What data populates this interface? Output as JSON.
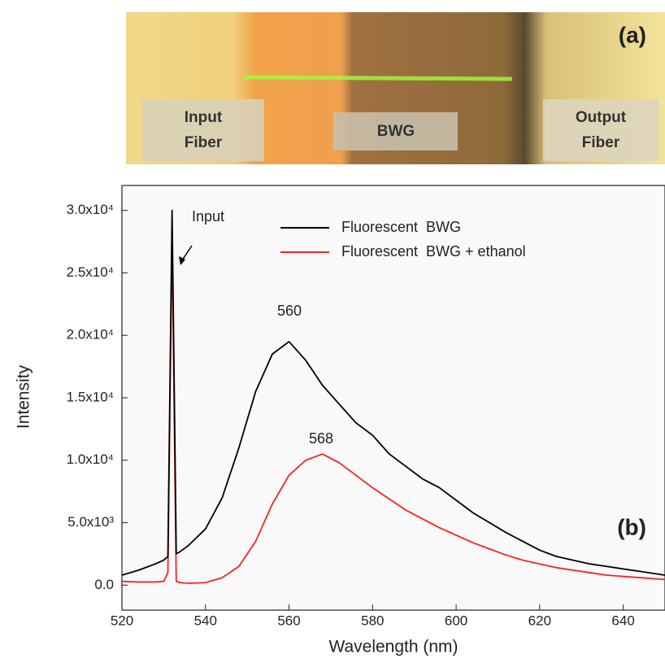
{
  "photo": {
    "tag": "(a)",
    "labels": [
      [
        "Input",
        "Fiber"
      ],
      [
        "BWG"
      ],
      [
        "Output",
        "Fiber"
      ]
    ]
  },
  "chart_data": {
    "type": "line",
    "tag": "(b)",
    "xlabel": "Wavelength (nm)",
    "ylabel": "Intensity",
    "xlim": [
      520,
      650
    ],
    "ylim": [
      -2000,
      32000
    ],
    "xticks": [
      520,
      540,
      560,
      580,
      600,
      620,
      640
    ],
    "yticks": [
      {
        "value": 0,
        "label": "0.0"
      },
      {
        "value": 5000,
        "label": "5.0x10³"
      },
      {
        "value": 10000,
        "label": "1.0x10⁴"
      },
      {
        "value": 15000,
        "label": "1.5x10⁴"
      },
      {
        "value": 20000,
        "label": "2.0x10⁴"
      },
      {
        "value": 25000,
        "label": "2.5x10⁴"
      },
      {
        "value": 30000,
        "label": "3.0x10⁴"
      }
    ],
    "annotations": [
      "Input",
      "560",
      "568"
    ],
    "x": [
      520,
      524,
      528,
      530,
      531,
      532,
      533,
      534,
      536,
      540,
      544,
      548,
      552,
      556,
      560,
      564,
      568,
      572,
      576,
      580,
      584,
      588,
      592,
      596,
      600,
      604,
      608,
      612,
      616,
      620,
      624,
      628,
      632,
      636,
      640,
      644,
      648,
      650
    ],
    "series": [
      {
        "name": "Fluorescent  BWG",
        "color": "#000000",
        "values": [
          800,
          1200,
          1700,
          2000,
          2300,
          30000,
          2500,
          2700,
          3200,
          4500,
          7000,
          11000,
          15500,
          18500,
          19500,
          18000,
          16000,
          14500,
          13000,
          12000,
          10500,
          9500,
          8500,
          7800,
          6800,
          5800,
          5000,
          4200,
          3500,
          2800,
          2300,
          2000,
          1700,
          1500,
          1300,
          1100,
          900,
          800
        ]
      },
      {
        "name": "Fluorescent  BWG + ethanol",
        "color": "#ff2020",
        "values": [
          300,
          250,
          250,
          300,
          1000,
          28000,
          300,
          200,
          150,
          200,
          600,
          1500,
          3500,
          6500,
          8800,
          10000,
          10500,
          9800,
          8800,
          7800,
          6900,
          6000,
          5300,
          4600,
          4000,
          3400,
          2900,
          2400,
          2000,
          1700,
          1400,
          1200,
          1000,
          800,
          700,
          600,
          500,
          450
        ]
      }
    ]
  }
}
